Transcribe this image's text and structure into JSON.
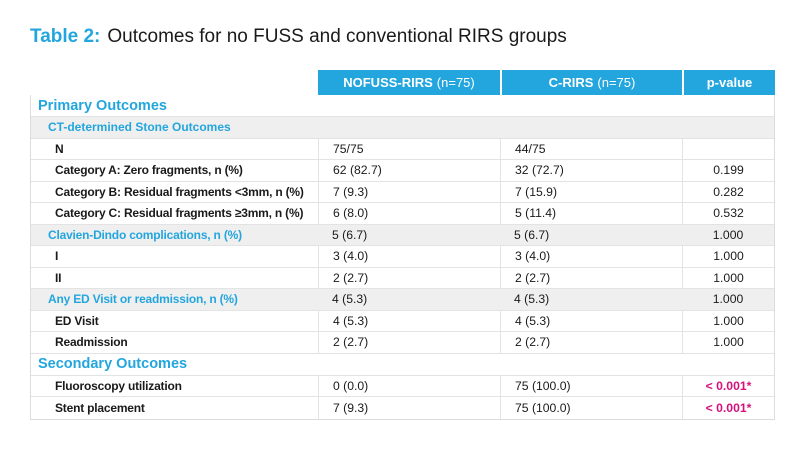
{
  "title": {
    "prefix": "Table 2:",
    "text": "Outcomes for no FUSS and conventional RIRS groups"
  },
  "colors": {
    "accent_cyan": "#23a6de",
    "highlight_magenta": "#d4107e",
    "shaded_row": "#efefef",
    "header_text": "#ffffff"
  },
  "table": {
    "columns": [
      {
        "name": "NOFUSS-RIRS",
        "sub": "(n=75)"
      },
      {
        "name": "C-RIRS",
        "sub": "(n=75)"
      },
      {
        "name": "p-value",
        "sub": ""
      }
    ],
    "rows": [
      {
        "type": "section",
        "label": "Primary Outcomes"
      },
      {
        "type": "subsection",
        "label": "CT-determined Stone Outcomes"
      },
      {
        "type": "item",
        "label": "N",
        "nofuss": "75/75",
        "crirs": "44/75",
        "p": ""
      },
      {
        "type": "item",
        "label": "Category A: Zero fragments, n (%)",
        "nofuss": "62 (82.7)",
        "crirs": "32 (72.7)",
        "p": "0.199"
      },
      {
        "type": "item",
        "label": "Category B: Residual fragments <3mm, n (%)",
        "nofuss": "7 (9.3)",
        "crirs": "7 (15.9)",
        "p": "0.282"
      },
      {
        "type": "item",
        "label": "Category C: Residual fragments ≥3mm, n (%)",
        "nofuss": "6 (8.0)",
        "crirs": "5 (11.4)",
        "p": "0.532"
      },
      {
        "type": "subdata",
        "label": "Clavien-Dindo complications, n (%)",
        "nofuss": "5 (6.7)",
        "crirs": "5 (6.7)",
        "p": "1.000"
      },
      {
        "type": "item",
        "label": "I",
        "nofuss": "3 (4.0)",
        "crirs": "3 (4.0)",
        "p": "1.000"
      },
      {
        "type": "item",
        "label": "II",
        "nofuss": "2 (2.7)",
        "crirs": "2 (2.7)",
        "p": "1.000"
      },
      {
        "type": "subdata",
        "label": "Any ED Visit or readmission, n (%)",
        "nofuss": "4 (5.3)",
        "crirs": "4 (5.3)",
        "p": "1.000"
      },
      {
        "type": "item",
        "label": "ED Visit",
        "nofuss": "4 (5.3)",
        "crirs": "4 (5.3)",
        "p": "1.000"
      },
      {
        "type": "item",
        "label": "Readmission",
        "nofuss": "2 (2.7)",
        "crirs": "2 (2.7)",
        "p": "1.000"
      },
      {
        "type": "section",
        "label": "Secondary Outcomes"
      },
      {
        "type": "item",
        "label": "Fluoroscopy utilization",
        "nofuss": "0 (0.0)",
        "crirs": "75 (100.0)",
        "p": "< 0.001*",
        "highlight": true
      },
      {
        "type": "item",
        "label": "Stent placement",
        "nofuss": "7 (9.3)",
        "crirs": "75 (100.0)",
        "p": "< 0.001*",
        "highlight": true
      }
    ]
  }
}
